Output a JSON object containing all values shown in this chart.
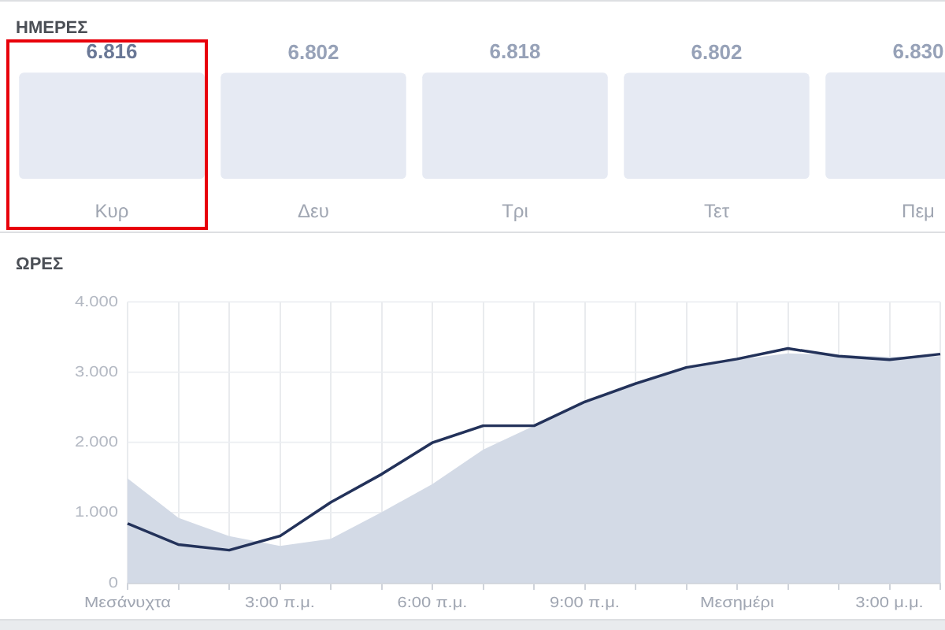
{
  "chart_data": [
    {
      "type": "bar",
      "title": "ΗΜΕΡΕΣ",
      "categories": [
        "Κυρ",
        "Δευ",
        "Τρι",
        "Τετ",
        "Πεμ"
      ],
      "values": [
        6816,
        6802,
        6818,
        6802,
        6830
      ],
      "value_labels": [
        "6.816",
        "6.802",
        "6.818",
        "6.802",
        "6.830"
      ],
      "color": "#e6eaf3",
      "grid": false,
      "legend": false
    },
    {
      "type": "area",
      "title": "ΩΡΕΣ",
      "categories": [
        "Μεσάνυχτα",
        null,
        null,
        "3:00 π.μ.",
        null,
        null,
        "6:00 π.μ.",
        null,
        null,
        "9:00 π.μ.",
        null,
        null,
        "Μεσημέρι",
        null,
        null,
        "3:00 μ.μ.",
        null
      ],
      "series": [
        {
          "type": "area",
          "color": "#d3dae6",
          "values": [
            1490,
            930,
            670,
            530,
            630,
            1010,
            1410,
            1900,
            2240,
            2560,
            2830,
            3060,
            3180,
            3270,
            3250,
            3220,
            3230
          ]
        },
        {
          "type": "line",
          "color": "#23325a",
          "values": [
            850,
            550,
            470,
            670,
            1150,
            1550,
            2000,
            2240,
            2240,
            2580,
            2840,
            3070,
            3190,
            3340,
            3230,
            3180,
            3260
          ]
        }
      ],
      "ylim": [
        0,
        4000
      ],
      "yticks": [
        0,
        {
          "value": 1000,
          "label": "1.000"
        },
        {
          "value": 2000,
          "label": "2.000"
        },
        {
          "value": 3000,
          "label": "3.000"
        },
        {
          "value": 4000,
          "label": "4.000"
        }
      ],
      "grid": true,
      "legend": false,
      "marker": "none",
      "line_style": "solid"
    }
  ]
}
